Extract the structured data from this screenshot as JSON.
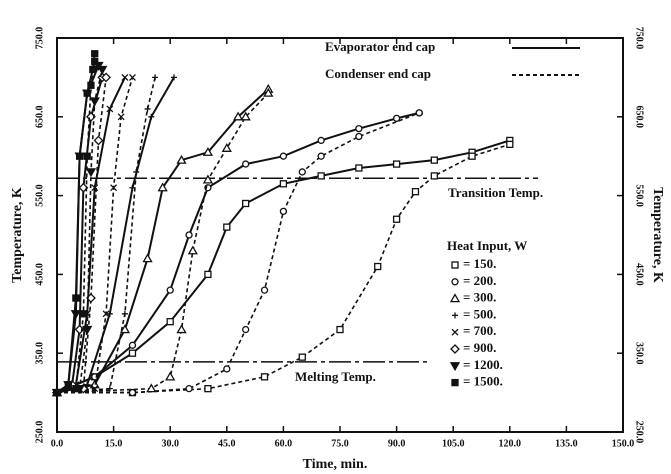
{
  "chart_data": {
    "type": "line",
    "xlabel": "Time, min.",
    "ylabel": "Temperature, K",
    "y2label": "Temperature, K",
    "xlim": [
      0,
      150
    ],
    "ylim": [
      250,
      750
    ],
    "xticks": [
      {
        "value": 0,
        "label": "0.0"
      },
      {
        "value": 15,
        "label": "15.0"
      },
      {
        "value": 30,
        "label": "30.0"
      },
      {
        "value": 45,
        "label": "45.0"
      },
      {
        "value": 60,
        "label": "60.0"
      },
      {
        "value": 75,
        "label": "75.0"
      },
      {
        "value": 90,
        "label": "90.0"
      },
      {
        "value": 105,
        "label": "105.0"
      },
      {
        "value": 120,
        "label": "120.0"
      },
      {
        "value": 135,
        "label": "135.0"
      },
      {
        "value": 150,
        "label": "150.0"
      }
    ],
    "yticks": [
      {
        "value": 250,
        "label": "250.0"
      },
      {
        "value": 350,
        "label": "350.0"
      },
      {
        "value": 450,
        "label": "450.0"
      },
      {
        "value": 550,
        "label": "550.0"
      },
      {
        "value": 650,
        "label": "650.0"
      },
      {
        "value": 750,
        "label": "750.0"
      }
    ],
    "line_styles": [
      {
        "name": "Evaporator end cap",
        "dash": false
      },
      {
        "name": "Condenser end cap",
        "dash": true
      }
    ],
    "legend_title": "Heat Input, W",
    "reference_lines": [
      {
        "label": "Transition Temp.",
        "value": 572
      },
      {
        "label": "Melting Temp.",
        "value": 339
      }
    ],
    "series": [
      {
        "name": "= 150.",
        "marker": "square",
        "evaporator": {
          "x": [
            0,
            10,
            20,
            30,
            40,
            45,
            50,
            60,
            70,
            80,
            90,
            100,
            110,
            120
          ],
          "values": [
            300,
            320,
            350,
            390,
            450,
            510,
            540,
            565,
            575,
            585,
            590,
            595,
            605,
            620
          ]
        },
        "condenser": {
          "x": [
            0,
            20,
            40,
            55,
            65,
            75,
            85,
            90,
            95,
            100,
            110,
            120
          ],
          "values": [
            300,
            300,
            305,
            320,
            345,
            380,
            460,
            520,
            555,
            575,
            600,
            615
          ]
        }
      },
      {
        "name": "= 200.",
        "marker": "circle",
        "evaporator": {
          "x": [
            0,
            10,
            20,
            30,
            35,
            40,
            50,
            60,
            70,
            80,
            90,
            96
          ],
          "values": [
            300,
            320,
            360,
            430,
            500,
            560,
            590,
            600,
            620,
            635,
            648,
            655
          ]
        },
        "condenser": {
          "x": [
            0,
            20,
            35,
            45,
            50,
            55,
            60,
            65,
            70,
            80,
            96
          ],
          "values": [
            300,
            300,
            305,
            330,
            380,
            430,
            530,
            580,
            600,
            625,
            655
          ]
        }
      },
      {
        "name": "= 300.",
        "marker": "triangle",
        "evaporator": {
          "x": [
            0,
            10,
            18,
            24,
            28,
            33,
            40,
            48,
            56
          ],
          "values": [
            300,
            310,
            380,
            470,
            560,
            595,
            605,
            650,
            685
          ]
        },
        "condenser": {
          "x": [
            0,
            25,
            30,
            33,
            36,
            40,
            45,
            50,
            56
          ],
          "values": [
            300,
            305,
            320,
            380,
            480,
            570,
            610,
            650,
            680
          ]
        }
      },
      {
        "name": "= 500.",
        "marker": "plus",
        "evaporator": {
          "x": [
            0,
            8,
            14,
            20,
            25,
            31
          ],
          "values": [
            300,
            310,
            400,
            560,
            650,
            700
          ]
        },
        "condenser": {
          "x": [
            0,
            14,
            18,
            21,
            24,
            26
          ],
          "values": [
            300,
            305,
            400,
            580,
            660,
            700
          ]
        }
      },
      {
        "name": "= 700.",
        "marker": "x",
        "evaporator": {
          "x": [
            0,
            5,
            8,
            10,
            14,
            18
          ],
          "values": [
            300,
            310,
            400,
            560,
            660,
            700
          ]
        },
        "condenser": {
          "x": [
            0,
            10,
            13,
            15,
            17,
            20
          ],
          "values": [
            300,
            305,
            400,
            560,
            650,
            700
          ]
        }
      },
      {
        "name": "= 900.",
        "marker": "diamond",
        "evaporator": {
          "x": [
            0,
            4,
            6,
            7,
            9,
            12
          ],
          "values": [
            300,
            310,
            380,
            560,
            650,
            700
          ]
        },
        "condenser": {
          "x": [
            0,
            7,
            9,
            11,
            13
          ],
          "values": [
            300,
            305,
            420,
            620,
            700
          ]
        }
      },
      {
        "name": "= 1200.",
        "marker": "tridown",
        "evaporator": {
          "x": [
            0,
            3,
            5,
            6,
            8,
            11
          ],
          "values": [
            300,
            310,
            400,
            600,
            680,
            715
          ]
        },
        "condenser": {
          "x": [
            0,
            6,
            8,
            9,
            10,
            12
          ],
          "values": [
            300,
            305,
            380,
            580,
            670,
            710
          ]
        }
      },
      {
        "name": "= 1500.",
        "marker": "fsquare",
        "evaporator": {
          "x": [
            0,
            3,
            5,
            6,
            8,
            9.5,
            10
          ],
          "values": [
            300,
            310,
            420,
            600,
            680,
            710,
            730
          ]
        },
        "condenser": {
          "x": [
            0,
            5,
            7,
            8,
            9,
            10
          ],
          "values": [
            300,
            305,
            400,
            600,
            690,
            720
          ]
        }
      }
    ]
  }
}
